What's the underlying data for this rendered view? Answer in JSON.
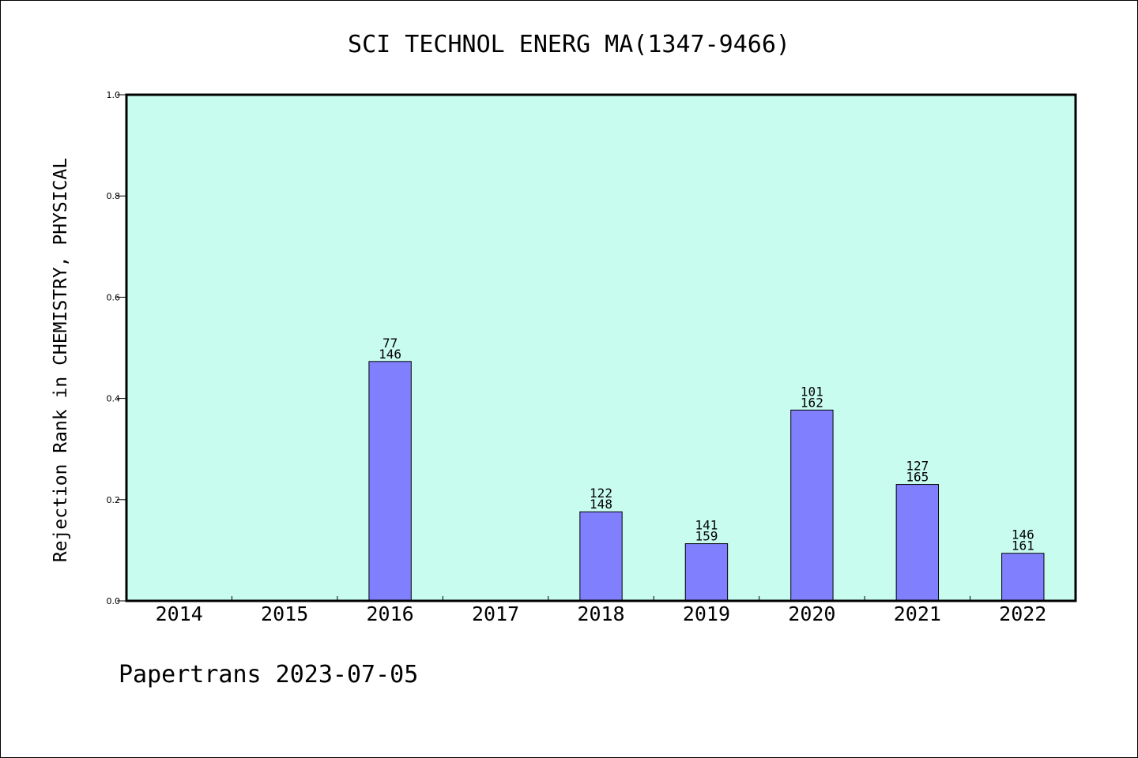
{
  "chart_data": {
    "type": "bar",
    "title": "SCI TECHNOL ENERG MA(1347-9466)",
    "xlabel": "",
    "ylabel": "Rejection Rank in CHEMISTRY, PHYSICAL",
    "categories": [
      "2014",
      "2015",
      "2016",
      "2017",
      "2018",
      "2019",
      "2020",
      "2021",
      "2022"
    ],
    "values": [
      null,
      null,
      0.473,
      null,
      0.176,
      0.113,
      0.377,
      0.23,
      0.094
    ],
    "rank": [
      "",
      "",
      "77",
      "",
      "122",
      "141",
      "101",
      "127",
      "146"
    ],
    "total": [
      "",
      "",
      "146",
      "",
      "148",
      "159",
      "162",
      "165",
      "161"
    ],
    "ylim": [
      0,
      1.0
    ],
    "yticks": [
      "0.0",
      "0.2",
      "0.4",
      "0.6",
      "0.8",
      "1.0"
    ],
    "grid": false,
    "colors": {
      "plot_bg": "#c8fcee",
      "bar": "#8080ff",
      "frame": "#000000"
    }
  },
  "footer": "Papertrans 2023-07-05"
}
